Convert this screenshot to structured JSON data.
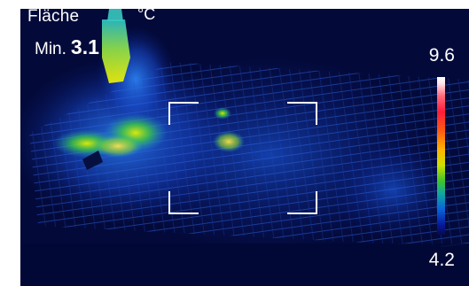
{
  "overlay": {
    "area_label": "Fläche",
    "unit": "°C",
    "min_label": "Min.",
    "min_value": "3.1"
  },
  "scale": {
    "max": "9.6",
    "min": "4.2",
    "palette": "iron-rainbow"
  }
}
